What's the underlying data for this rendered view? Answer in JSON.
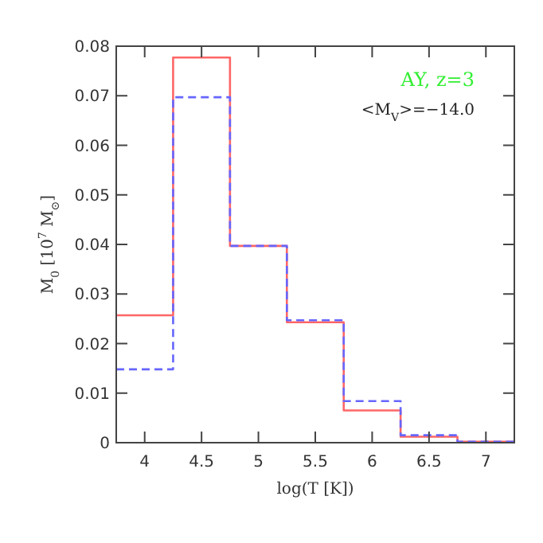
{
  "chart_data": {
    "type": "histogram",
    "xlabel": "log(T [K])",
    "ylabel": "M$_{0}$ [10$^{7}$ M$_{⊙}$]",
    "bins": [
      3.75,
      4.25,
      4.75,
      5.25,
      5.75,
      6.25,
      6.75,
      7.25
    ],
    "series": [
      {
        "color": "#ff6666",
        "line_style": "solid",
        "values": [
          0.0257,
          0.0777,
          0.0397,
          0.0243,
          0.0065,
          0.0012,
          0.0002
        ]
      },
      {
        "color": "#6666ff",
        "line_style": "dashed",
        "values": [
          0.0148,
          0.0697,
          0.0397,
          0.0247,
          0.0084,
          0.0015,
          0.0002
        ]
      }
    ],
    "xlim": [
      3.75,
      7.25
    ],
    "xticks": [
      4,
      4.5,
      5,
      5.5,
      6,
      6.5,
      7
    ],
    "ylim": [
      0,
      0.08
    ],
    "yticks": [
      0,
      0.01,
      0.02,
      0.03,
      0.04,
      0.05,
      0.06,
      0.07,
      0.08
    ],
    "annotations": [
      "AY, z=3",
      "<M$_{V}$>=−14.0"
    ]
  }
}
